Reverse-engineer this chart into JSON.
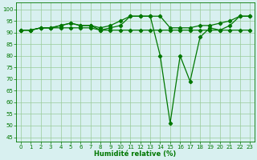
{
  "xlabel": "Humidité relative (%)",
  "x": [
    0,
    1,
    2,
    3,
    4,
    5,
    6,
    7,
    8,
    9,
    10,
    11,
    12,
    13,
    14,
    15,
    16,
    17,
    18,
    19,
    20,
    21,
    22,
    23
  ],
  "y_main": [
    91,
    91,
    92,
    92,
    93,
    94,
    93,
    93,
    91,
    92,
    93,
    97,
    97,
    97,
    80,
    51,
    80,
    69,
    88,
    92,
    91,
    93,
    97,
    97
  ],
  "y_upper": [
    91,
    91,
    92,
    92,
    93,
    94,
    93,
    93,
    92,
    93,
    95,
    97,
    97,
    97,
    97,
    92,
    92,
    92,
    93,
    93,
    94,
    95,
    97,
    97
  ],
  "y_lower": [
    91,
    91,
    92,
    92,
    92,
    92,
    92,
    92,
    91,
    91,
    91,
    91,
    91,
    91,
    91,
    91,
    91,
    91,
    91,
    91,
    91,
    91,
    91,
    91
  ],
  "line_color": "#007700",
  "bg_color": "#d8f0f0",
  "grid_color": "#99cc99",
  "xlim": [
    -0.5,
    23.5
  ],
  "ylim": [
    43,
    103
  ],
  "yticks": [
    45,
    50,
    55,
    60,
    65,
    70,
    75,
    80,
    85,
    90,
    95,
    100
  ],
  "xticks": [
    0,
    1,
    2,
    3,
    4,
    5,
    6,
    7,
    8,
    9,
    10,
    11,
    12,
    13,
    14,
    15,
    16,
    17,
    18,
    19,
    20,
    21,
    22,
    23
  ],
  "tick_fontsize": 5,
  "xlabel_fontsize": 6
}
